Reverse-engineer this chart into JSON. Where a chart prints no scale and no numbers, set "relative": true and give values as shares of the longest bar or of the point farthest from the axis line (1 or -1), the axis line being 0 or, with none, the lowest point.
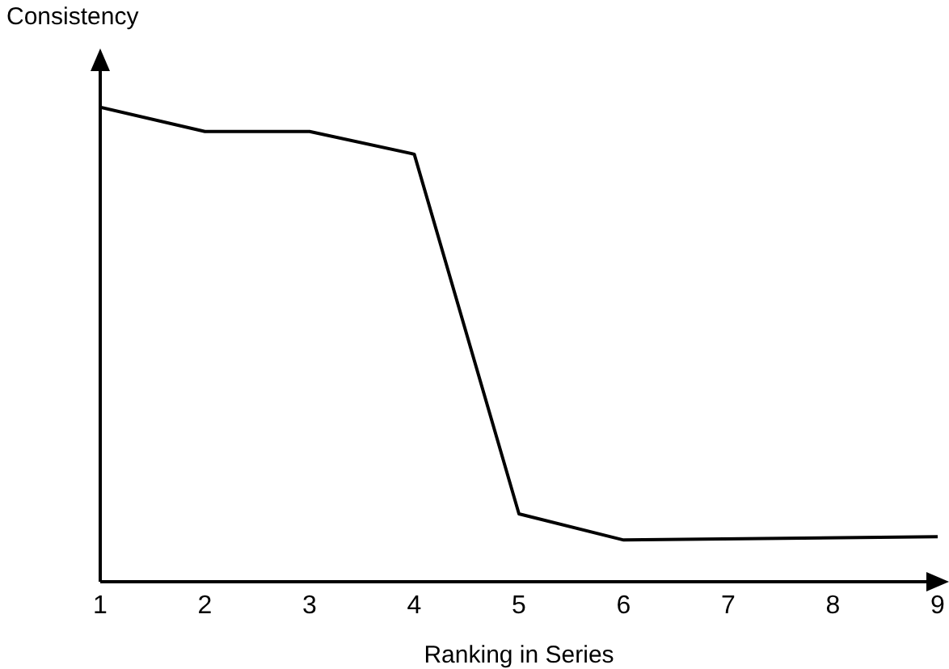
{
  "chart_data": {
    "type": "line",
    "relative": true,
    "xlabel": "Ranking in Series",
    "ylabel": "Consistency",
    "x": [
      1,
      2,
      3,
      4,
      5,
      6,
      9
    ],
    "xlim": [
      1,
      9
    ],
    "xticks": [
      1,
      2,
      3,
      4,
      5,
      6,
      7,
      8,
      9
    ],
    "series": [
      {
        "color": "#000000",
        "values": [
          1,
          0.949,
          0.949,
          0.901,
          0.143,
          0.088,
          0.095
        ]
      }
    ],
    "grid": false,
    "marker": "none",
    "line_style": "solid"
  }
}
